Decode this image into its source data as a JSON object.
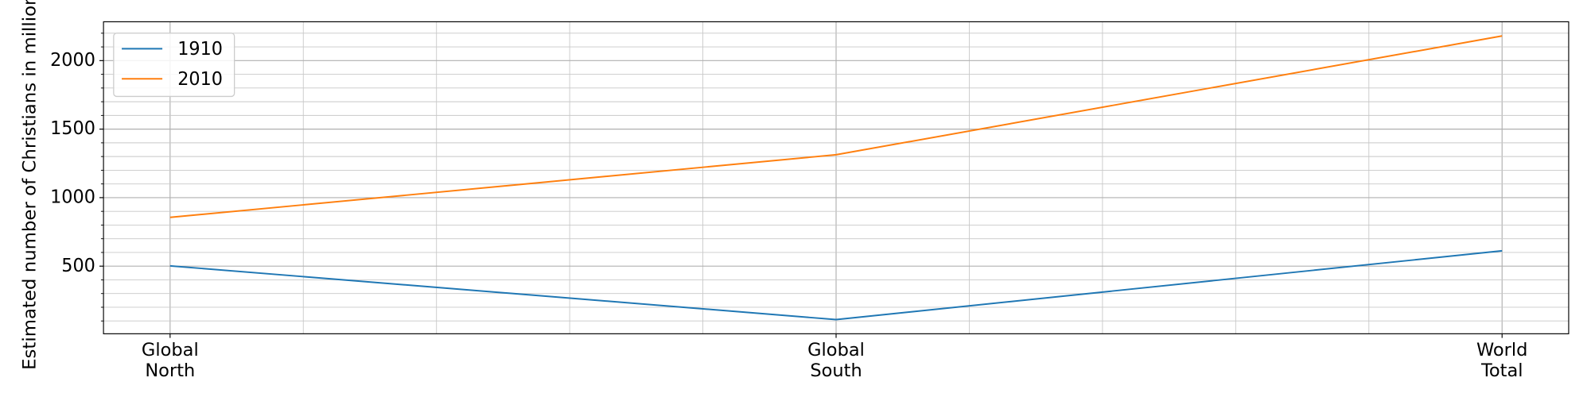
{
  "chart_data": {
    "type": "line",
    "ylabel": "Estimated number of Christians in millions",
    "categories": [
      "Global\nNorth",
      "Global\nSouth",
      "World\nTotal"
    ],
    "series": [
      {
        "name": "1910",
        "color": "#1f77b4",
        "values": [
          502,
          110,
          612
        ]
      },
      {
        "name": "2010",
        "color": "#ff7f0e",
        "values": [
          856,
          1313,
          2180
        ]
      }
    ],
    "ylim": [
      6.5,
      2283.5
    ],
    "yticks": [
      500,
      1000,
      1500,
      2000
    ],
    "yminorticks": [
      100,
      200,
      300,
      400,
      600,
      700,
      800,
      900,
      1100,
      1200,
      1300,
      1400,
      1600,
      1700,
      1800,
      1900,
      2100,
      2200
    ],
    "grid": true,
    "legend": "upper left"
  }
}
